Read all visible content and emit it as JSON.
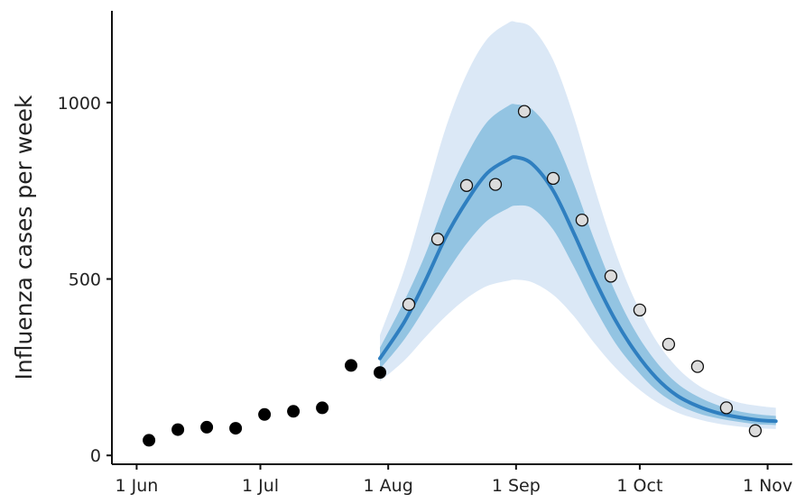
{
  "chart_data": {
    "type": "line",
    "ylabel": "Influenza cases per week",
    "xlabel": "",
    "xlim": [
      "2021-05-26",
      "2021-11-07"
    ],
    "ylim": [
      -25,
      1260
    ],
    "x_ticks": [
      {
        "date": "2021-06-01",
        "label": "1 Jun"
      },
      {
        "date": "2021-07-01",
        "label": "1 Jul"
      },
      {
        "date": "2021-08-01",
        "label": "1 Aug"
      },
      {
        "date": "2021-09-01",
        "label": "1 Sep"
      },
      {
        "date": "2021-10-01",
        "label": "1 Oct"
      },
      {
        "date": "2021-11-01",
        "label": "1 Nov"
      }
    ],
    "y_ticks": [
      {
        "value": 0,
        "label": "0"
      },
      {
        "value": 500,
        "label": "500"
      },
      {
        "value": 1000,
        "label": "1000"
      }
    ],
    "grid": false,
    "colors": {
      "observed": "#000000",
      "future_fill": "#dcdcdc",
      "median": "#2f7fc0",
      "band_inner": "#93c4e2",
      "band_outer": "#dbe8f6"
    },
    "series": [
      {
        "kind": "observed",
        "x": [
          "2021-06-04",
          "2021-06-11",
          "2021-06-18",
          "2021-06-25",
          "2021-07-02",
          "2021-07-09",
          "2021-07-16",
          "2021-07-23",
          "2021-07-30"
        ],
        "y": [
          43,
          73,
          80,
          77,
          116,
          125,
          135,
          255,
          235
        ]
      },
      {
        "kind": "future_observed",
        "x": [
          "2021-08-06",
          "2021-08-13",
          "2021-08-20",
          "2021-08-27",
          "2021-09-03",
          "2021-09-10",
          "2021-09-17",
          "2021-09-24",
          "2021-10-01",
          "2021-10-08",
          "2021-10-15",
          "2021-10-22",
          "2021-10-29"
        ],
        "y": [
          428,
          613,
          765,
          768,
          975,
          785,
          667,
          508,
          412,
          315,
          252,
          135,
          70
        ]
      },
      {
        "kind": "forecast",
        "x": [
          "2021-07-30",
          "2021-08-05",
          "2021-08-10",
          "2021-08-15",
          "2021-08-20",
          "2021-08-25",
          "2021-08-30",
          "2021-09-01",
          "2021-09-05",
          "2021-09-10",
          "2021-09-15",
          "2021-09-20",
          "2021-09-25",
          "2021-09-30",
          "2021-10-05",
          "2021-10-10",
          "2021-10-15",
          "2021-10-20",
          "2021-10-25",
          "2021-10-30",
          "2021-11-03"
        ],
        "median": [
          275,
          380,
          495,
          620,
          720,
          800,
          838,
          845,
          825,
          750,
          630,
          500,
          385,
          292,
          220,
          170,
          140,
          120,
          108,
          100,
          97
        ],
        "lower_inner": [
          245,
          330,
          420,
          515,
          600,
          665,
          700,
          708,
          700,
          640,
          535,
          420,
          320,
          245,
          185,
          145,
          120,
          105,
          95,
          88,
          86
        ],
        "upper_inner": [
          305,
          440,
          570,
          725,
          850,
          945,
          990,
          995,
          980,
          905,
          770,
          610,
          465,
          350,
          265,
          205,
          167,
          142,
          125,
          116,
          112
        ],
        "lower_outer": [
          210,
          270,
          335,
          395,
          445,
          480,
          495,
          498,
          490,
          455,
          395,
          318,
          250,
          195,
          152,
          122,
          103,
          90,
          82,
          77,
          75
        ],
        "upper_outer": [
          340,
          530,
          730,
          930,
          1080,
          1180,
          1225,
          1228,
          1210,
          1120,
          960,
          760,
          580,
          435,
          325,
          250,
          200,
          170,
          150,
          140,
          135
        ]
      }
    ]
  }
}
